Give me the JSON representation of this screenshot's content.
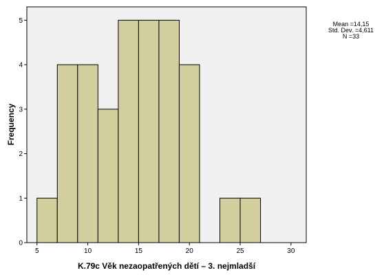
{
  "chart_data": {
    "type": "bar",
    "subtype": "histogram",
    "title": "",
    "xlabel": "K.79c Věk nezaopatřených dětí – 3. nejmladší",
    "ylabel": "Frequency",
    "bins": [
      {
        "from": 5,
        "to": 7,
        "count": 1
      },
      {
        "from": 7,
        "to": 9,
        "count": 4
      },
      {
        "from": 9,
        "to": 11,
        "count": 4
      },
      {
        "from": 11,
        "to": 13,
        "count": 3
      },
      {
        "from": 13,
        "to": 15,
        "count": 5
      },
      {
        "from": 15,
        "to": 17,
        "count": 5
      },
      {
        "from": 17,
        "to": 19,
        "count": 5
      },
      {
        "from": 19,
        "to": 21,
        "count": 4
      },
      {
        "from": 21,
        "to": 23,
        "count": 0
      },
      {
        "from": 23,
        "to": 25,
        "count": 1
      },
      {
        "from": 25,
        "to": 27,
        "count": 1
      }
    ],
    "xlim": [
      4,
      31.5
    ],
    "ylim": [
      0,
      5.3
    ],
    "x_ticks": [
      5,
      10,
      15,
      20,
      25,
      30
    ],
    "y_ticks": [
      0,
      1,
      2,
      3,
      4,
      5
    ],
    "grid": false,
    "colors": {
      "bar_fill": "#d3ce9e",
      "bar_stroke": "#000000",
      "plot_bg": "#f0f0f0"
    },
    "stats": {
      "mean": "Mean =14,15",
      "std_dev": "Std. Dev. =4,611",
      "n": "N =33"
    }
  }
}
